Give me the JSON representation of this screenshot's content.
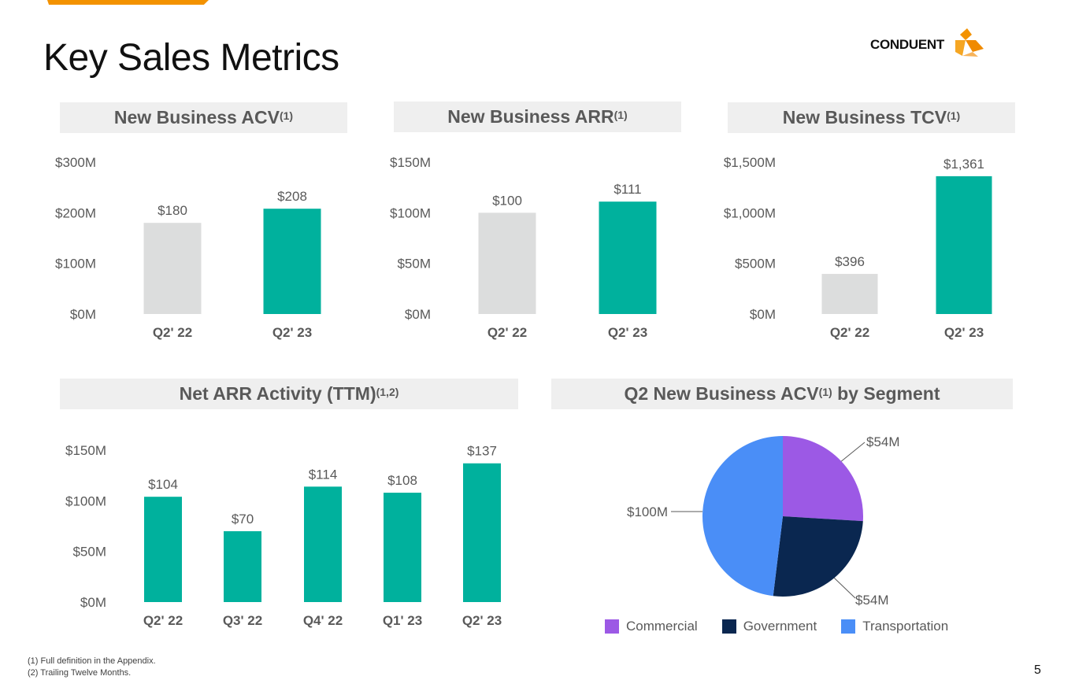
{
  "page_title": "Key Sales Metrics",
  "logo_text": "CONDUENT",
  "page_number": "5",
  "colors": {
    "accent": "#f39200",
    "prior": "#dcdddd",
    "current": "#00b19d",
    "commercial": "#9c59e5",
    "government": "#0a2750",
    "transportation": "#4a8ef7"
  },
  "panels": {
    "acv": {
      "title": "New Business ACV",
      "sup": "(1)"
    },
    "arr": {
      "title": "New Business ARR",
      "sup": "(1)"
    },
    "tcv": {
      "title": "New Business TCV",
      "sup": "(1)"
    },
    "net": {
      "title": "Net ARR Activity (TTM)",
      "sup": "(1,2)"
    },
    "segment": {
      "title_pre": "Q2 New Business ACV",
      "sup": "(1)",
      "title_post": " by Segment"
    }
  },
  "chart_data": [
    {
      "id": "acv",
      "type": "bar",
      "title": "New Business ACV(1)",
      "categories": [
        "Q2' 22",
        "Q2' 23"
      ],
      "values": [
        180,
        208
      ],
      "data_labels": [
        "$180",
        "$208"
      ],
      "color_keys": [
        "prior",
        "current"
      ],
      "ylim": [
        0,
        300
      ],
      "ticks": [
        0,
        100,
        200,
        300
      ],
      "tick_labels": [
        "$0M",
        "$100M",
        "$200M",
        "$300M"
      ]
    },
    {
      "id": "arr",
      "type": "bar",
      "title": "New Business ARR(1)",
      "categories": [
        "Q2' 22",
        "Q2' 23"
      ],
      "values": [
        100,
        111
      ],
      "data_labels": [
        "$100",
        "$111"
      ],
      "color_keys": [
        "prior",
        "current"
      ],
      "ylim": [
        0,
        150
      ],
      "ticks": [
        0,
        50,
        100,
        150
      ],
      "tick_labels": [
        "$0M",
        "$50M",
        "$100M",
        "$150M"
      ]
    },
    {
      "id": "tcv",
      "type": "bar",
      "title": "New Business TCV(1)",
      "categories": [
        "Q2' 22",
        "Q2' 23"
      ],
      "values": [
        396,
        1361
      ],
      "data_labels": [
        "$396",
        "$1,361"
      ],
      "color_keys": [
        "prior",
        "current"
      ],
      "ylim": [
        0,
        1500
      ],
      "ticks": [
        0,
        500,
        1000,
        1500
      ],
      "tick_labels": [
        "$0M",
        "$500M",
        "$1,000M",
        "$1,500M"
      ]
    },
    {
      "id": "net",
      "type": "bar",
      "title": "Net ARR Activity (TTM)(1,2)",
      "categories": [
        "Q2' 22",
        "Q3' 22",
        "Q4' 22",
        "Q1' 23",
        "Q2' 23"
      ],
      "values": [
        104,
        70,
        114,
        108,
        137
      ],
      "data_labels": [
        "$104",
        "$70",
        "$114",
        "$108",
        "$137"
      ],
      "color_keys": [
        "current",
        "current",
        "current",
        "current",
        "current"
      ],
      "ylim": [
        0,
        150
      ],
      "ticks": [
        0,
        50,
        100,
        150
      ],
      "tick_labels": [
        "$0M",
        "$50M",
        "$100M",
        "$150M"
      ]
    },
    {
      "id": "segment",
      "type": "pie",
      "title": "Q2 New Business ACV(1) by Segment",
      "labels": [
        "Commercial",
        "Government",
        "Transportation"
      ],
      "values": [
        54,
        54,
        100
      ],
      "data_labels": [
        "$54M",
        "$54M",
        "$100M"
      ],
      "color_keys": [
        "commercial",
        "government",
        "transportation"
      ],
      "legend": "bottom"
    }
  ],
  "legend": [
    {
      "label": "Commercial",
      "color": "#9c59e5"
    },
    {
      "label": "Government",
      "color": "#0a2750"
    },
    {
      "label": "Transportation",
      "color": "#4a8ef7"
    }
  ],
  "footnotes": [
    "(1) Full definition in the Appendix.",
    "(2) Trailing Twelve Months."
  ]
}
